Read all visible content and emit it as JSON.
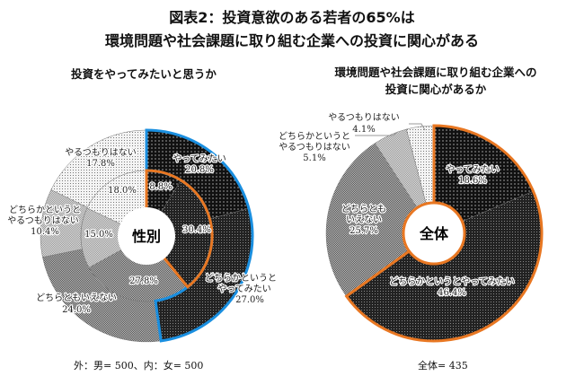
{
  "title_line1": "図表2：投資意欲のある若者の65%は",
  "title_line2": "環境問題や社会課題に取り組む企業への投資に関心がある",
  "chart_data": [
    {
      "type": "pie",
      "subtype": "double-donut",
      "title": "投資をやってみたいと思うか",
      "center_label": "性別",
      "footnote": "外：男= 500、内：女= 500",
      "categories": [
        "やってみたい",
        "どちらかというとやってみたい",
        "どちらともいえない",
        "どちらかというとやるつもりはない",
        "やるつもりはない"
      ],
      "series": [
        {
          "name": "男",
          "ring": "outer",
          "values": [
            20.8,
            27.0,
            24.0,
            10.4,
            17.8
          ],
          "labels": [
            "20.8%",
            "27.0%",
            "24.0%",
            "10.4%",
            "17.8%"
          ]
        },
        {
          "name": "女",
          "ring": "inner",
          "values": [
            8.8,
            30.4,
            27.8,
            15.0,
            18.0
          ],
          "labels": [
            "8.8%",
            "30.4%",
            "27.8%",
            "15.0%",
            "18.0%"
          ]
        }
      ],
      "highlight_colors": {
        "outer": "#1a8fe0",
        "inner": "#e87722"
      }
    },
    {
      "type": "pie",
      "subtype": "donut",
      "title_line1": "環境問題や社会課題に取り組む企業への",
      "title_line2": "投資に関心があるか",
      "center_label": "全体",
      "footnote": "全体= 435",
      "categories": [
        "やってみたい",
        "どちらかというとやってみたい",
        "どちらともいえない",
        "どちらかというとやるつもりはない",
        "やるつもりはない"
      ],
      "series": [
        {
          "name": "全体",
          "values": [
            18.6,
            46.4,
            25.7,
            5.1,
            4.1
          ],
          "labels": [
            "18.6%",
            "46.4%",
            "25.7%",
            "5.1%",
            "4.1%"
          ]
        }
      ],
      "highlight_color": "#e87722"
    }
  ],
  "label_text": {
    "yes": "やってみたい",
    "rather_yes_1": "どちらかというと",
    "rather_yes_2": "やってみたい",
    "rather_yes_full": "どちらかというとやってみたい",
    "neutral": "どちらともいえない",
    "neutral_1": "どちらとも",
    "neutral_2": "いえない",
    "rather_no_1": "どちらかというと",
    "rather_no_2": "やるつもりはない",
    "no": "やるつもりはない"
  }
}
